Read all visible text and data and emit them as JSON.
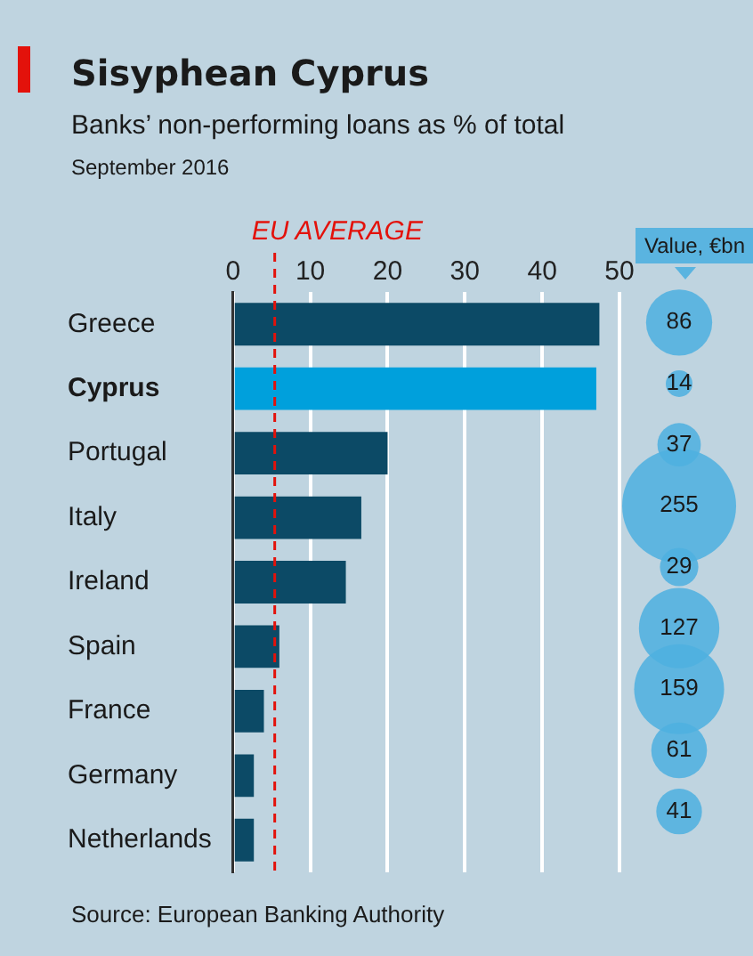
{
  "chart_data": [
    {
      "type": "bar",
      "orientation": "horizontal",
      "title": "Sisyphean Cyprus",
      "subtitle": "Banks’ non-performing loans as % of total",
      "annotations": [
        "September 2016",
        "Source: European Banking Authority"
      ],
      "categories": [
        "Greece",
        "Cyprus",
        "Portugal",
        "Italy",
        "Ireland",
        "Spain",
        "France",
        "Germany",
        "Netherlands"
      ],
      "values": [
        47.4,
        47.0,
        20.0,
        16.6,
        14.6,
        6.0,
        4.0,
        2.7,
        2.7
      ],
      "colors": [
        "#0c4a66",
        "#00a0dc",
        "#0c4a66",
        "#0c4a66",
        "#0c4a66",
        "#0c4a66",
        "#0c4a66",
        "#0c4a66",
        "#0c4a66"
      ],
      "xlim": [
        0,
        50
      ],
      "xticks": [
        0,
        10,
        20,
        30,
        40,
        50
      ],
      "grid": "x",
      "legend": false,
      "ref_lines": [
        {
          "axis": "x",
          "value": 5.4,
          "label": "EU AVERAGE",
          "color": "#e3120b",
          "line_style": "dashed"
        }
      ]
    },
    {
      "type": "other",
      "title": "Value, €bn",
      "values": [
        86,
        14,
        37,
        255,
        29,
        127,
        159,
        61,
        41
      ],
      "color": "#4fb1e0",
      "data_labels": true
    }
  ]
}
